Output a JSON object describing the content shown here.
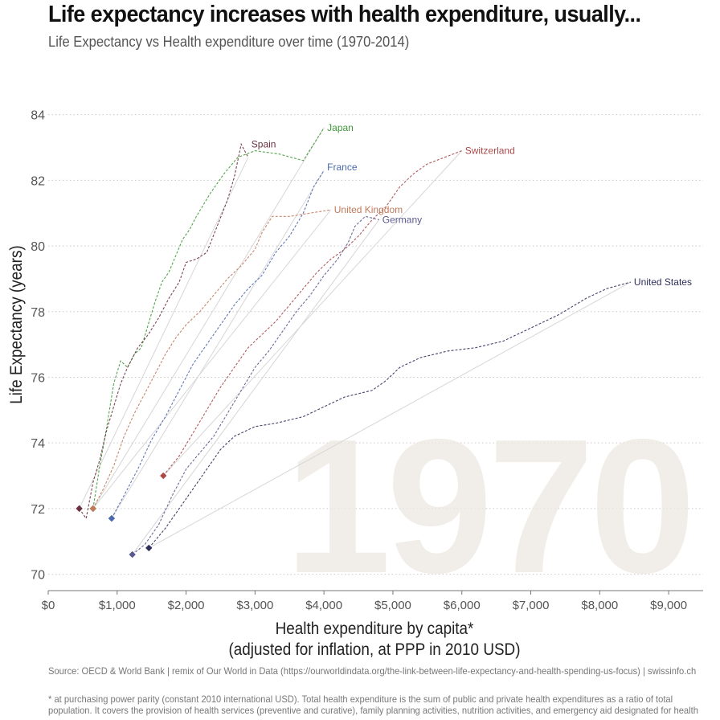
{
  "title": "Life expectancy increases with health expenditure, usually...",
  "subtitle": "Life Expectancy vs Health expenditure over time (1970-2014)",
  "source": "Source: OECD & World Bank | remix of Our World in Data (https://ourworldindata.org/the-link-between-life-expectancy-and-health-spending-us-focus) | swissinfo.ch",
  "footnote": "* at purchasing power parity (constant 2010 international USD). Total health expenditure is the sum of public and private health expenditures as a ratio of total population. It covers the provision of health services (preventive and curative), family planning activities, nutrition activities, and emergency aid designated for health",
  "chart_data": {
    "type": "line",
    "title": "Life expectancy increases with health expenditure, usually...",
    "subtitle": "Life Expectancy vs Health expenditure over time (1970-2014)",
    "xlabel": "Health expenditure by capita*",
    "xlabel_line2": "(adjusted for inflation, at PPP in 2010 USD)",
    "ylabel": "Life Expectancy (years)",
    "xlim": [
      0,
      9500
    ],
    "ylim": [
      69.5,
      84.8
    ],
    "x_ticks": [
      0,
      1000,
      2000,
      3000,
      4000,
      5000,
      6000,
      7000,
      8000,
      9000
    ],
    "x_tick_labels": [
      "$0",
      "$1,000",
      "$2,000",
      "$3,000",
      "$4,000",
      "$5,000",
      "$6,000",
      "$7,000",
      "$8,000",
      "$9,000"
    ],
    "y_ticks": [
      70,
      72,
      74,
      76,
      78,
      80,
      82,
      84
    ],
    "y_tick_labels": [
      "70",
      "72",
      "74",
      "76",
      "78",
      "80",
      "82",
      "84"
    ],
    "grid": "horizontal dotted",
    "watermark_year": "1970",
    "series": [
      {
        "name": "Japan",
        "color": "#3f9a3a",
        "start": [
          650,
          72.0
        ],
        "path": [
          [
            650,
            72.0
          ],
          [
            740,
            73.2
          ],
          [
            850,
            74.5
          ],
          [
            950,
            75.8
          ],
          [
            1050,
            76.5
          ],
          [
            1150,
            76.3
          ],
          [
            1250,
            76.7
          ],
          [
            1350,
            76.9
          ],
          [
            1450,
            77.6
          ],
          [
            1550,
            78.3
          ],
          [
            1650,
            78.9
          ],
          [
            1750,
            79.2
          ],
          [
            1850,
            79.7
          ],
          [
            1950,
            80.2
          ],
          [
            2050,
            80.5
          ],
          [
            2150,
            80.9
          ],
          [
            2350,
            81.6
          ],
          [
            2550,
            82.2
          ],
          [
            2750,
            82.7
          ],
          [
            3000,
            82.9
          ],
          [
            3350,
            82.8
          ],
          [
            3700,
            82.6
          ],
          [
            3850,
            83.1
          ],
          [
            4000,
            83.6
          ]
        ],
        "label_at": [
          4000,
          83.6
        ]
      },
      {
        "name": "Spain",
        "color": "#6b3141",
        "start": [
          450,
          72.0
        ],
        "path": [
          [
            450,
            72.0
          ],
          [
            550,
            71.7
          ],
          [
            650,
            72.8
          ],
          [
            750,
            73.5
          ],
          [
            850,
            74.4
          ],
          [
            950,
            75.1
          ],
          [
            1050,
            75.8
          ],
          [
            1150,
            76.3
          ],
          [
            1300,
            76.9
          ],
          [
            1450,
            77.3
          ],
          [
            1600,
            77.8
          ],
          [
            1750,
            78.4
          ],
          [
            1900,
            78.9
          ],
          [
            2000,
            79.5
          ],
          [
            2150,
            79.6
          ],
          [
            2300,
            79.8
          ],
          [
            2450,
            80.6
          ],
          [
            2600,
            81.4
          ],
          [
            2700,
            82.1
          ],
          [
            2750,
            82.6
          ],
          [
            2800,
            83.1
          ],
          [
            2850,
            82.9
          ],
          [
            2900,
            82.7
          ]
        ],
        "label_at": [
          2900,
          83.1
        ]
      },
      {
        "name": "France",
        "color": "#4a6aae",
        "start": [
          920,
          71.7
        ],
        "path": [
          [
            920,
            71.7
          ],
          [
            1100,
            72.4
          ],
          [
            1300,
            73.2
          ],
          [
            1500,
            74.1
          ],
          [
            1700,
            74.8
          ],
          [
            1900,
            75.6
          ],
          [
            2100,
            76.4
          ],
          [
            2300,
            77.0
          ],
          [
            2500,
            77.6
          ],
          [
            2700,
            78.2
          ],
          [
            2900,
            78.7
          ],
          [
            3100,
            79.1
          ],
          [
            3300,
            79.8
          ],
          [
            3500,
            80.3
          ],
          [
            3700,
            81.0
          ],
          [
            3850,
            81.8
          ],
          [
            4000,
            82.3
          ]
        ],
        "label_at": [
          4000,
          82.4
        ]
      },
      {
        "name": "Switzerland",
        "color": "#a84a4a",
        "start": [
          1670,
          73.0
        ],
        "path": [
          [
            1670,
            73.0
          ],
          [
            1900,
            73.6
          ],
          [
            2100,
            74.3
          ],
          [
            2300,
            75.0
          ],
          [
            2500,
            75.7
          ],
          [
            2700,
            76.3
          ],
          [
            2900,
            76.9
          ],
          [
            3100,
            77.3
          ],
          [
            3300,
            77.7
          ],
          [
            3500,
            78.2
          ],
          [
            3700,
            78.7
          ],
          [
            3900,
            79.2
          ],
          [
            4100,
            79.6
          ],
          [
            4300,
            79.9
          ],
          [
            4500,
            80.3
          ],
          [
            4700,
            80.8
          ],
          [
            4900,
            81.2
          ],
          [
            5100,
            81.8
          ],
          [
            5300,
            82.2
          ],
          [
            5500,
            82.5
          ],
          [
            5750,
            82.7
          ],
          [
            6000,
            82.9
          ]
        ],
        "label_at": [
          6000,
          82.9
        ]
      },
      {
        "name": "United Kingdom",
        "color": "#c07a5a",
        "start": [
          650,
          72.0
        ],
        "path": [
          [
            650,
            72.0
          ],
          [
            800,
            72.6
          ],
          [
            950,
            73.3
          ],
          [
            1100,
            74.2
          ],
          [
            1250,
            74.9
          ],
          [
            1400,
            75.5
          ],
          [
            1550,
            76.1
          ],
          [
            1700,
            76.7
          ],
          [
            1850,
            77.2
          ],
          [
            2000,
            77.6
          ],
          [
            2200,
            78.0
          ],
          [
            2400,
            78.5
          ],
          [
            2600,
            79.0
          ],
          [
            2800,
            79.4
          ],
          [
            3000,
            79.9
          ],
          [
            3100,
            80.4
          ],
          [
            3250,
            80.9
          ],
          [
            3500,
            80.9
          ],
          [
            3800,
            81.0
          ],
          [
            4100,
            81.1
          ]
        ],
        "label_at": [
          4100,
          81.1
        ]
      },
      {
        "name": "Germany",
        "color": "#5b5a8e",
        "start": [
          1220,
          70.6
        ],
        "path": [
          [
            1220,
            70.6
          ],
          [
            1400,
            70.9
          ],
          [
            1600,
            71.5
          ],
          [
            1800,
            72.4
          ],
          [
            2000,
            73.2
          ],
          [
            2200,
            73.7
          ],
          [
            2400,
            74.2
          ],
          [
            2600,
            74.9
          ],
          [
            2800,
            75.6
          ],
          [
            3000,
            76.3
          ],
          [
            3200,
            76.8
          ],
          [
            3400,
            77.4
          ],
          [
            3600,
            78.0
          ],
          [
            3800,
            78.5
          ],
          [
            4000,
            79.1
          ],
          [
            4200,
            79.6
          ],
          [
            4350,
            80.1
          ],
          [
            4450,
            80.6
          ],
          [
            4600,
            80.9
          ],
          [
            4800,
            80.8
          ]
        ],
        "label_at": [
          4800,
          80.8
        ]
      },
      {
        "name": "United States",
        "color": "#2f2f5c",
        "start": [
          1460,
          70.8
        ],
        "path": [
          [
            1460,
            70.8
          ],
          [
            1700,
            71.4
          ],
          [
            1900,
            72.0
          ],
          [
            2100,
            72.6
          ],
          [
            2300,
            73.2
          ],
          [
            2500,
            73.8
          ],
          [
            2700,
            74.2
          ],
          [
            3000,
            74.5
          ],
          [
            3300,
            74.6
          ],
          [
            3700,
            74.8
          ],
          [
            4000,
            75.1
          ],
          [
            4300,
            75.4
          ],
          [
            4500,
            75.5
          ],
          [
            4700,
            75.6
          ],
          [
            4900,
            75.9
          ],
          [
            5100,
            76.3
          ],
          [
            5400,
            76.6
          ],
          [
            5800,
            76.8
          ],
          [
            6200,
            76.9
          ],
          [
            6600,
            77.1
          ],
          [
            7000,
            77.5
          ],
          [
            7400,
            77.9
          ],
          [
            7800,
            78.4
          ],
          [
            8100,
            78.7
          ],
          [
            8450,
            78.9
          ]
        ],
        "label_at": [
          8450,
          78.9
        ]
      }
    ]
  }
}
